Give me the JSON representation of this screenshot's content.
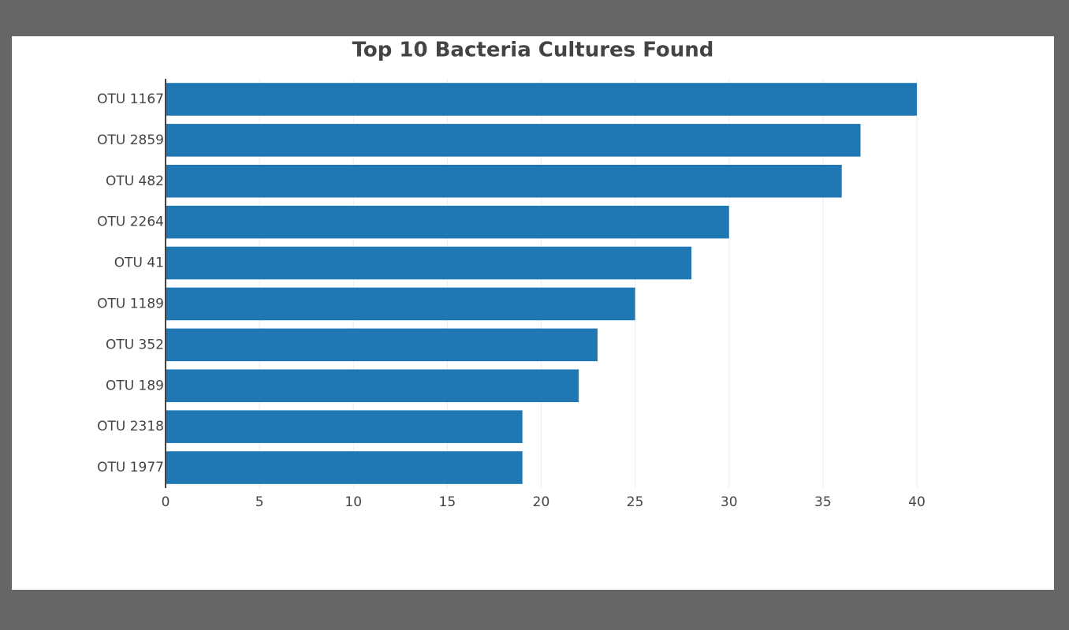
{
  "chart_data": {
    "type": "bar",
    "orientation": "horizontal",
    "title": "Top 10 Bacteria Cultures Found",
    "categories": [
      "OTU 1167",
      "OTU 2859",
      "OTU 482",
      "OTU 2264",
      "OTU 41",
      "OTU 1189",
      "OTU 352",
      "OTU 189",
      "OTU 2318",
      "OTU 1977"
    ],
    "values": [
      40,
      37,
      36,
      30,
      28,
      25,
      23,
      22,
      19,
      19
    ],
    "color": "#1f77b4",
    "xlim": [
      0,
      40
    ],
    "xticks": [
      0,
      5,
      10,
      15,
      20,
      25,
      30,
      35,
      40
    ],
    "grid": true
  }
}
